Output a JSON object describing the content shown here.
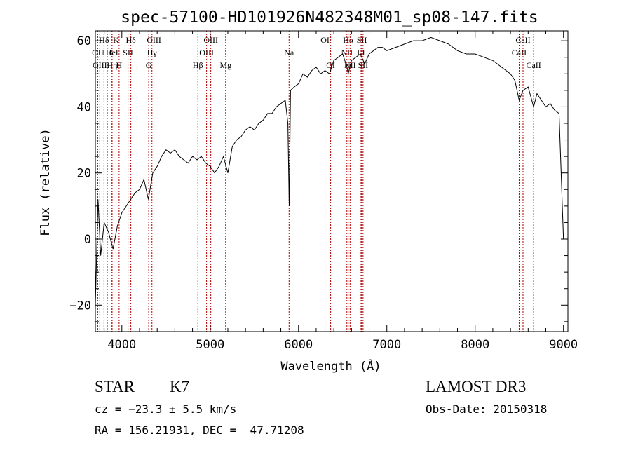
{
  "chart_data": {
    "type": "line",
    "title": "spec-57100-HD101926N482348M01_sp08-147.fits",
    "xlabel": "Wavelength (Å)",
    "ylabel": "Flux (relative)",
    "xlim": [
      3700,
      9050
    ],
    "ylim": [
      -28,
      63
    ],
    "xticks": [
      4000,
      5000,
      6000,
      7000,
      8000,
      9000
    ],
    "yticks": [
      -20,
      0,
      20,
      40,
      60
    ],
    "grid": false,
    "series": [
      {
        "x": [
          3700,
          3730,
          3760,
          3800,
          3850,
          3900,
          3950,
          4000,
          4050,
          4100,
          4150,
          4200,
          4250,
          4300,
          4350,
          4400,
          4450,
          4500,
          4550,
          4600,
          4650,
          4700,
          4750,
          4800,
          4850,
          4900,
          4950,
          5000,
          5050,
          5100,
          5150,
          5200,
          5250,
          5300,
          5350,
          5400,
          5450,
          5500,
          5550,
          5600,
          5650,
          5700,
          5750,
          5800,
          5850,
          5880,
          5895,
          5910,
          5950,
          6000,
          6050,
          6100,
          6150,
          6200,
          6250,
          6300,
          6350,
          6400,
          6450,
          6500,
          6550,
          6563,
          6600,
          6650,
          6700,
          6750,
          6800,
          6850,
          6900,
          6950,
          7000,
          7100,
          7200,
          7300,
          7400,
          7500,
          7600,
          7700,
          7800,
          7900,
          8000,
          8100,
          8200,
          8300,
          8400,
          8450,
          8498,
          8542,
          8600,
          8662,
          8700,
          8750,
          8800,
          8850,
          8900,
          8950,
          9000
        ],
        "y": [
          -20,
          12,
          -5,
          5,
          2,
          -3,
          4,
          8,
          10,
          12,
          14,
          15,
          18,
          12,
          20,
          22,
          25,
          27,
          26,
          27,
          25,
          24,
          23,
          25,
          24,
          25,
          23,
          22,
          20,
          22,
          25,
          20,
          28,
          30,
          31,
          33,
          34,
          33,
          35,
          36,
          38,
          38,
          40,
          41,
          42,
          35,
          10,
          45,
          46,
          47,
          50,
          49,
          51,
          52,
          50,
          51,
          50,
          54,
          55,
          56,
          52,
          50,
          54,
          55,
          56,
          53,
          56,
          57,
          58,
          58,
          57,
          58,
          59,
          60,
          60,
          61,
          60,
          59,
          57,
          56,
          56,
          55,
          54,
          52,
          50,
          48,
          42,
          45,
          46,
          40,
          44,
          42,
          40,
          41,
          39,
          38,
          0
        ]
      }
    ],
    "lines": [
      {
        "label": "Hδ",
        "x": 3798,
        "row": 0
      },
      {
        "label": "OII",
        "x": 3727,
        "row": 1
      },
      {
        "label": "OIII",
        "x": 3750,
        "row": 2
      },
      {
        "label": "Hε",
        "x": 3835,
        "row": 1
      },
      {
        "label": "Hη",
        "x": 3889,
        "row": 2
      },
      {
        "label": "K",
        "x": 3934,
        "row": 0
      },
      {
        "label": "HeI",
        "x": 3889,
        "row": 1
      },
      {
        "label": "H",
        "x": 3969,
        "row": 2
      },
      {
        "label": "SII",
        "x": 4070,
        "row": 1
      },
      {
        "label": "Hδ",
        "x": 4102,
        "row": 0
      },
      {
        "label": "G",
        "x": 4304,
        "row": 2
      },
      {
        "label": "OIII",
        "x": 4363,
        "row": 0
      },
      {
        "label": "Hγ",
        "x": 4341,
        "row": 1
      },
      {
        "label": "Hβ",
        "x": 4861,
        "row": 2
      },
      {
        "label": "OIII",
        "x": 4959,
        "row": 1
      },
      {
        "label": "OIII",
        "x": 5007,
        "row": 0
      },
      {
        "label": "Mg",
        "x": 5175,
        "row": 2
      },
      {
        "label": "Na",
        "x": 5893,
        "row": 1
      },
      {
        "label": "OI",
        "x": 6300,
        "row": 0
      },
      {
        "label": "OI",
        "x": 6364,
        "row": 2
      },
      {
        "label": "NII",
        "x": 6548,
        "row": 1
      },
      {
        "label": "Hα",
        "x": 6563,
        "row": 0
      },
      {
        "label": "NII",
        "x": 6584,
        "row": 2
      },
      {
        "label": "SII",
        "x": 6717,
        "row": 0
      },
      {
        "label": "LI",
        "x": 6708,
        "row": 1
      },
      {
        "label": "SII",
        "x": 6731,
        "row": 2
      },
      {
        "label": "CaII",
        "x": 8498,
        "row": 1
      },
      {
        "label": "CaII",
        "x": 8542,
        "row": 0
      },
      {
        "label": "CaII",
        "x": 8662,
        "row": 2
      }
    ]
  },
  "info": {
    "class": "STAR",
    "subclass": "K7",
    "cz": "cz = −23.3 ± 5.5 km/s",
    "coords": "RA = 156.21931, DEC =  47.71208",
    "survey": "LAMOST DR3",
    "obs_date": "Obs-Date: 20150318"
  }
}
